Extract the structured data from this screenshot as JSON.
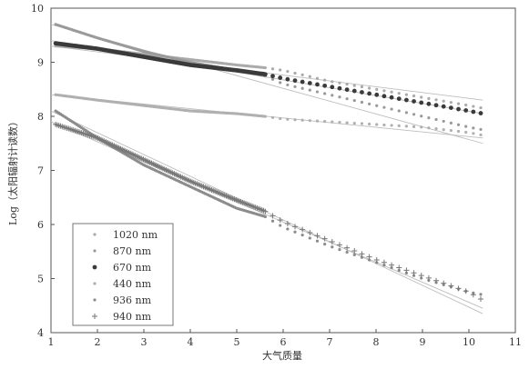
{
  "chart_data": {
    "type": "scatter",
    "title": "",
    "xlabel": "大气质量",
    "ylabel": "Log（太阳辐射计读数）",
    "xlim": [
      1,
      11
    ],
    "ylim": [
      4,
      10
    ],
    "xticks": [
      1,
      2,
      3,
      4,
      5,
      6,
      7,
      8,
      9,
      10,
      11
    ],
    "yticks": [
      4,
      5,
      6,
      7,
      8,
      9,
      10
    ],
    "grid": false,
    "legend_position": "bottom-left",
    "series": [
      {
        "name": "1020 nm",
        "marker": "dot-small",
        "color": "#aaaaaa",
        "x": [
          1.1,
          2,
          3,
          4,
          5,
          5.6,
          6,
          7,
          8,
          9,
          10,
          10.3
        ],
        "y": [
          9.3,
          9.25,
          9.15,
          9.05,
          8.95,
          8.9,
          8.85,
          8.65,
          8.5,
          8.35,
          8.2,
          8.15
        ],
        "fit": {
          "x": [
            1,
            10.3
          ],
          "y": [
            9.3,
            8.3
          ]
        }
      },
      {
        "name": "870 nm",
        "marker": "dot-small",
        "color": "#9a9a9a",
        "x": [
          1.1,
          2,
          3,
          4,
          5,
          5.6,
          6,
          7,
          8,
          9,
          10,
          10.3
        ],
        "y": [
          9.7,
          9.45,
          9.2,
          9.0,
          8.85,
          8.75,
          8.6,
          8.4,
          8.2,
          8.0,
          7.8,
          7.75
        ],
        "fit": {
          "x": [
            1,
            10.3
          ],
          "y": [
            9.7,
            7.5
          ]
        }
      },
      {
        "name": "670 nm",
        "marker": "dot",
        "color": "#3a3a3a",
        "x": [
          1.1,
          2,
          3,
          4,
          5,
          5.6,
          6,
          7,
          8,
          9,
          10,
          10.3
        ],
        "y": [
          9.35,
          9.25,
          9.1,
          8.95,
          8.85,
          8.78,
          8.7,
          8.55,
          8.4,
          8.25,
          8.1,
          8.05
        ],
        "fit": {
          "x": [
            1,
            10.3
          ],
          "y": [
            9.4,
            8.05
          ]
        }
      },
      {
        "name": "440 nm",
        "marker": "dot-small",
        "color": "#b0b0b0",
        "x": [
          1.1,
          2,
          3,
          4,
          5,
          5.6,
          6,
          7,
          8,
          9,
          10,
          10.3
        ],
        "y": [
          8.4,
          8.3,
          8.2,
          8.1,
          8.05,
          8.0,
          7.95,
          7.9,
          7.85,
          7.8,
          7.7,
          7.65
        ],
        "fit": {
          "x": [
            1,
            10.3
          ],
          "y": [
            8.4,
            7.6
          ]
        }
      },
      {
        "name": "936 nm",
        "marker": "dot-small",
        "color": "#8c8c8c",
        "x": [
          1.1,
          2,
          3,
          4,
          5,
          5.6,
          6,
          7,
          8,
          9,
          10,
          10.3
        ],
        "y": [
          8.1,
          7.6,
          7.1,
          6.7,
          6.3,
          6.15,
          5.95,
          5.6,
          5.3,
          5.0,
          4.75,
          4.7
        ],
        "fit": {
          "x": [
            1,
            10.3
          ],
          "y": [
            8.1,
            4.35
          ]
        }
      },
      {
        "name": "940 nm",
        "marker": "plus",
        "color": "#777777",
        "x": [
          1.1,
          2,
          3,
          4,
          5,
          5.6,
          6,
          7,
          8,
          9,
          10,
          10.3
        ],
        "y": [
          7.85,
          7.6,
          7.2,
          6.8,
          6.45,
          6.25,
          6.05,
          5.7,
          5.35,
          5.05,
          4.75,
          4.6
        ],
        "fit": {
          "x": [
            1,
            10.3
          ],
          "y": [
            7.9,
            4.45
          ]
        }
      }
    ]
  }
}
